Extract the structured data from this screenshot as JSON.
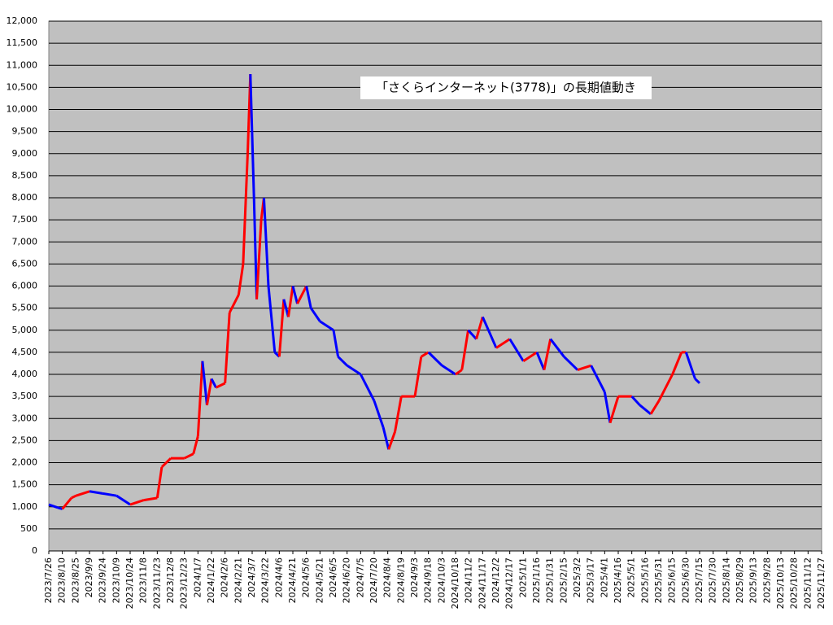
{
  "chart_data": {
    "type": "line",
    "title": "「さくらインターネット(3778)」の長期値動き",
    "up_color": "#ff0000",
    "down_color": "#0000ff",
    "grid": true,
    "ylim": [
      0,
      12000
    ],
    "yticks": [
      0,
      500,
      {
        "value": 1000,
        "label": "1,000"
      },
      {
        "value": 1500,
        "label": "1,500"
      },
      {
        "value": 2000,
        "label": "2,000"
      },
      {
        "value": 2500,
        "label": "2,500"
      },
      {
        "value": 3000,
        "label": "3,000"
      },
      {
        "value": 3500,
        "label": "3,500"
      },
      {
        "value": 4000,
        "label": "4,000"
      },
      {
        "value": 4500,
        "label": "4,500"
      },
      {
        "value": 5000,
        "label": "5,000"
      },
      {
        "value": 5500,
        "label": "5,500"
      },
      {
        "value": 6000,
        "label": "6,000"
      },
      {
        "value": 6500,
        "label": "6,500"
      },
      {
        "value": 7000,
        "label": "7,000"
      },
      {
        "value": 7500,
        "label": "7,500"
      },
      {
        "value": 8000,
        "label": "8,000"
      },
      {
        "value": 8500,
        "label": "8,500"
      },
      {
        "value": 9000,
        "label": "9,000"
      },
      {
        "value": 9500,
        "label": "9,500"
      },
      {
        "value": 10000,
        "label": "10,000"
      },
      {
        "value": 10500,
        "label": "10,500"
      },
      {
        "value": 11000,
        "label": "11,000"
      },
      {
        "value": 11500,
        "label": "11,500"
      },
      {
        "value": 12000,
        "label": "12,000"
      }
    ],
    "xlim": [
      "2023/7/26",
      "2025/11/27"
    ],
    "xticks": [
      "2023/7/26",
      "2023/8/10",
      "2023/8/25",
      "2023/9/9",
      "2023/9/24",
      "2023/10/9",
      "2023/10/24",
      "2023/11/8",
      "2023/11/23",
      "2023/12/8",
      "2023/12/23",
      "2024/1/7",
      "2024/1/22",
      "2024/2/6",
      "2024/2/21",
      "2024/3/7",
      "2024/3/22",
      "2024/4/6",
      "2024/4/21",
      "2024/5/6",
      "2024/5/21",
      "2024/6/5",
      "2024/6/20",
      "2024/7/5",
      "2024/7/20",
      "2024/8/4",
      "2024/8/19",
      "2024/9/3",
      "2024/9/18",
      "2024/10/3",
      "2024/10/18",
      "2024/11/2",
      "2024/11/17",
      "2024/12/2",
      "2024/12/17",
      "2025/1/1",
      "2025/1/16",
      "2025/1/31",
      "2025/2/15",
      "2025/3/2",
      "2025/3/17",
      "2025/4/1",
      "2025/4/16",
      "2025/5/1",
      "2025/5/16",
      "2025/5/31",
      "2025/6/15",
      "2025/6/30",
      "2025/7/15",
      "2025/7/30",
      "2025/8/14",
      "2025/8/29",
      "2025/9/13",
      "2025/9/28",
      "2025/10/13",
      "2025/10/28",
      "2025/11/12",
      "2025/11/27"
    ],
    "x": [
      "2023/7/26",
      "2023/8/5",
      "2023/8/10",
      "2023/8/20",
      "2023/8/25",
      "2023/9/9",
      "2023/9/24",
      "2023/10/9",
      "2023/10/24",
      "2023/11/8",
      "2023/11/23",
      "2023/11/28",
      "2023/12/8",
      "2023/12/23",
      "2024/1/2",
      "2024/1/7",
      "2024/1/12",
      "2024/1/17",
      "2024/1/22",
      "2024/1/27",
      "2024/2/6",
      "2024/2/11",
      "2024/2/21",
      "2024/2/26",
      "2024/3/2",
      "2024/3/5",
      "2024/3/9",
      "2024/3/12",
      "2024/3/17",
      "2024/3/20",
      "2024/3/25",
      "2024/4/1",
      "2024/4/6",
      "2024/4/11",
      "2024/4/16",
      "2024/4/21",
      "2024/4/26",
      "2024/5/6",
      "2024/5/11",
      "2024/5/21",
      "2024/6/5",
      "2024/6/10",
      "2024/6/20",
      "2024/7/5",
      "2024/7/20",
      "2024/7/30",
      "2024/8/5",
      "2024/8/12",
      "2024/8/19",
      "2024/9/3",
      "2024/9/10",
      "2024/9/18",
      "2024/10/3",
      "2024/10/18",
      "2024/10/25",
      "2024/11/1",
      "2024/11/10",
      "2024/11/17",
      "2024/12/2",
      "2024/12/17",
      "2025/1/1",
      "2025/1/16",
      "2025/1/24",
      "2025/1/31",
      "2025/2/15",
      "2025/3/2",
      "2025/3/17",
      "2025/4/1",
      "2025/4/7",
      "2025/4/16",
      "2025/5/1",
      "2025/5/10",
      "2025/5/22",
      "2025/5/31",
      "2025/6/15",
      "2025/6/25",
      "2025/6/30",
      "2025/7/10",
      "2025/7/15"
    ],
    "values": [
      1050,
      980,
      950,
      1200,
      1250,
      1350,
      1300,
      1250,
      1050,
      1150,
      1200,
      1900,
      2100,
      2100,
      2200,
      2600,
      4300,
      3300,
      3900,
      3700,
      3800,
      5400,
      5800,
      6500,
      9000,
      10800,
      8000,
      5700,
      7500,
      8000,
      6000,
      4500,
      4400,
      5700,
      5300,
      6000,
      5600,
      6000,
      5500,
      5200,
      5000,
      4400,
      4200,
      4000,
      3400,
      2800,
      2300,
      2700,
      3500,
      3500,
      4400,
      4500,
      4200,
      4000,
      4100,
      5000,
      4800,
      5300,
      4600,
      4800,
      4300,
      4500,
      4100,
      4800,
      4400,
      4100,
      4200,
      3600,
      2900,
      3500,
      3500,
      3300,
      3100,
      3400,
      4000,
      4500,
      4500,
      3900,
      3800
    ]
  }
}
